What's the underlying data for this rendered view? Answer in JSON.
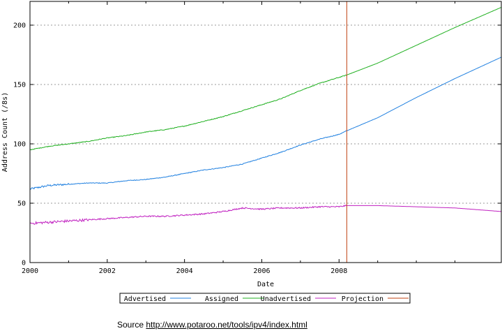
{
  "chart_data": {
    "type": "line",
    "xlabel": "Date",
    "ylabel": "Address Count (/8s)",
    "xlim": [
      2000,
      2012.2
    ],
    "ylim": [
      0,
      220
    ],
    "x_ticks": [
      2000,
      2002,
      2004,
      2006,
      2008
    ],
    "x_tick_labels": [
      "2000",
      "2002",
      "2004",
      "2006",
      "2008"
    ],
    "x_minor_ticks": [
      2001,
      2003,
      2005,
      2007,
      2009,
      2010,
      2011
    ],
    "y_ticks": [
      0,
      50,
      100,
      150,
      200
    ],
    "y_tick_labels": [
      "0",
      "50",
      "100",
      "150",
      "200"
    ],
    "grid": "horizontal dotted",
    "legend_position": "bottom",
    "vertical_marker": {
      "name": "Projection",
      "x": 2008.2,
      "color": "#c04010"
    },
    "series": [
      {
        "name": "Advertised",
        "color": "#2080e0",
        "x": [
          2000,
          2000.5,
          2001,
          2001.5,
          2002,
          2002.5,
          2003,
          2003.5,
          2004,
          2004.5,
          2005,
          2005.5,
          2006,
          2006.5,
          2007,
          2007.5,
          2008,
          2008.2,
          2009,
          2010,
          2011,
          2012.2
        ],
        "y": [
          62,
          65,
          66,
          67,
          67,
          69,
          70,
          72,
          75,
          78,
          80,
          83,
          88,
          93,
          99,
          104,
          108,
          111,
          122,
          139,
          155,
          173
        ]
      },
      {
        "name": "Assigned",
        "color": "#20b020",
        "x": [
          2000,
          2000.5,
          2001,
          2001.5,
          2002,
          2002.5,
          2003,
          2003.5,
          2004,
          2004.5,
          2005,
          2005.5,
          2006,
          2006.5,
          2007,
          2007.5,
          2008,
          2008.2,
          2009,
          2010,
          2011,
          2012.2
        ],
        "y": [
          95,
          98,
          100,
          102,
          105,
          107,
          110,
          112,
          115,
          119,
          123,
          128,
          133,
          138,
          145,
          151,
          156,
          158,
          168,
          183,
          198,
          215
        ]
      },
      {
        "name": "Unadvertised",
        "color": "#c020c0",
        "x": [
          2000,
          2000.5,
          2001,
          2001.5,
          2002,
          2002.5,
          2003,
          2003.5,
          2004,
          2004.5,
          2005,
          2005.5,
          2006,
          2006.5,
          2007,
          2007.5,
          2008,
          2008.2,
          2009,
          2010,
          2011,
          2012.2
        ],
        "y": [
          33,
          34,
          35,
          36,
          37,
          38,
          39,
          39,
          40,
          41,
          43,
          46,
          45,
          46,
          46,
          47,
          47,
          48,
          48,
          47,
          46,
          43
        ]
      }
    ]
  },
  "legend": {
    "items": [
      {
        "label": "Advertised",
        "color": "#2080e0"
      },
      {
        "label": "Assigned",
        "color": "#20b020"
      },
      {
        "label": "Unadvertised",
        "color": "#c020c0"
      },
      {
        "label": "Projection",
        "color": "#c04010"
      }
    ]
  },
  "source": {
    "prefix": "Source ",
    "link_text": "http://www.potaroo.net/tools/ipv4/index.html"
  }
}
